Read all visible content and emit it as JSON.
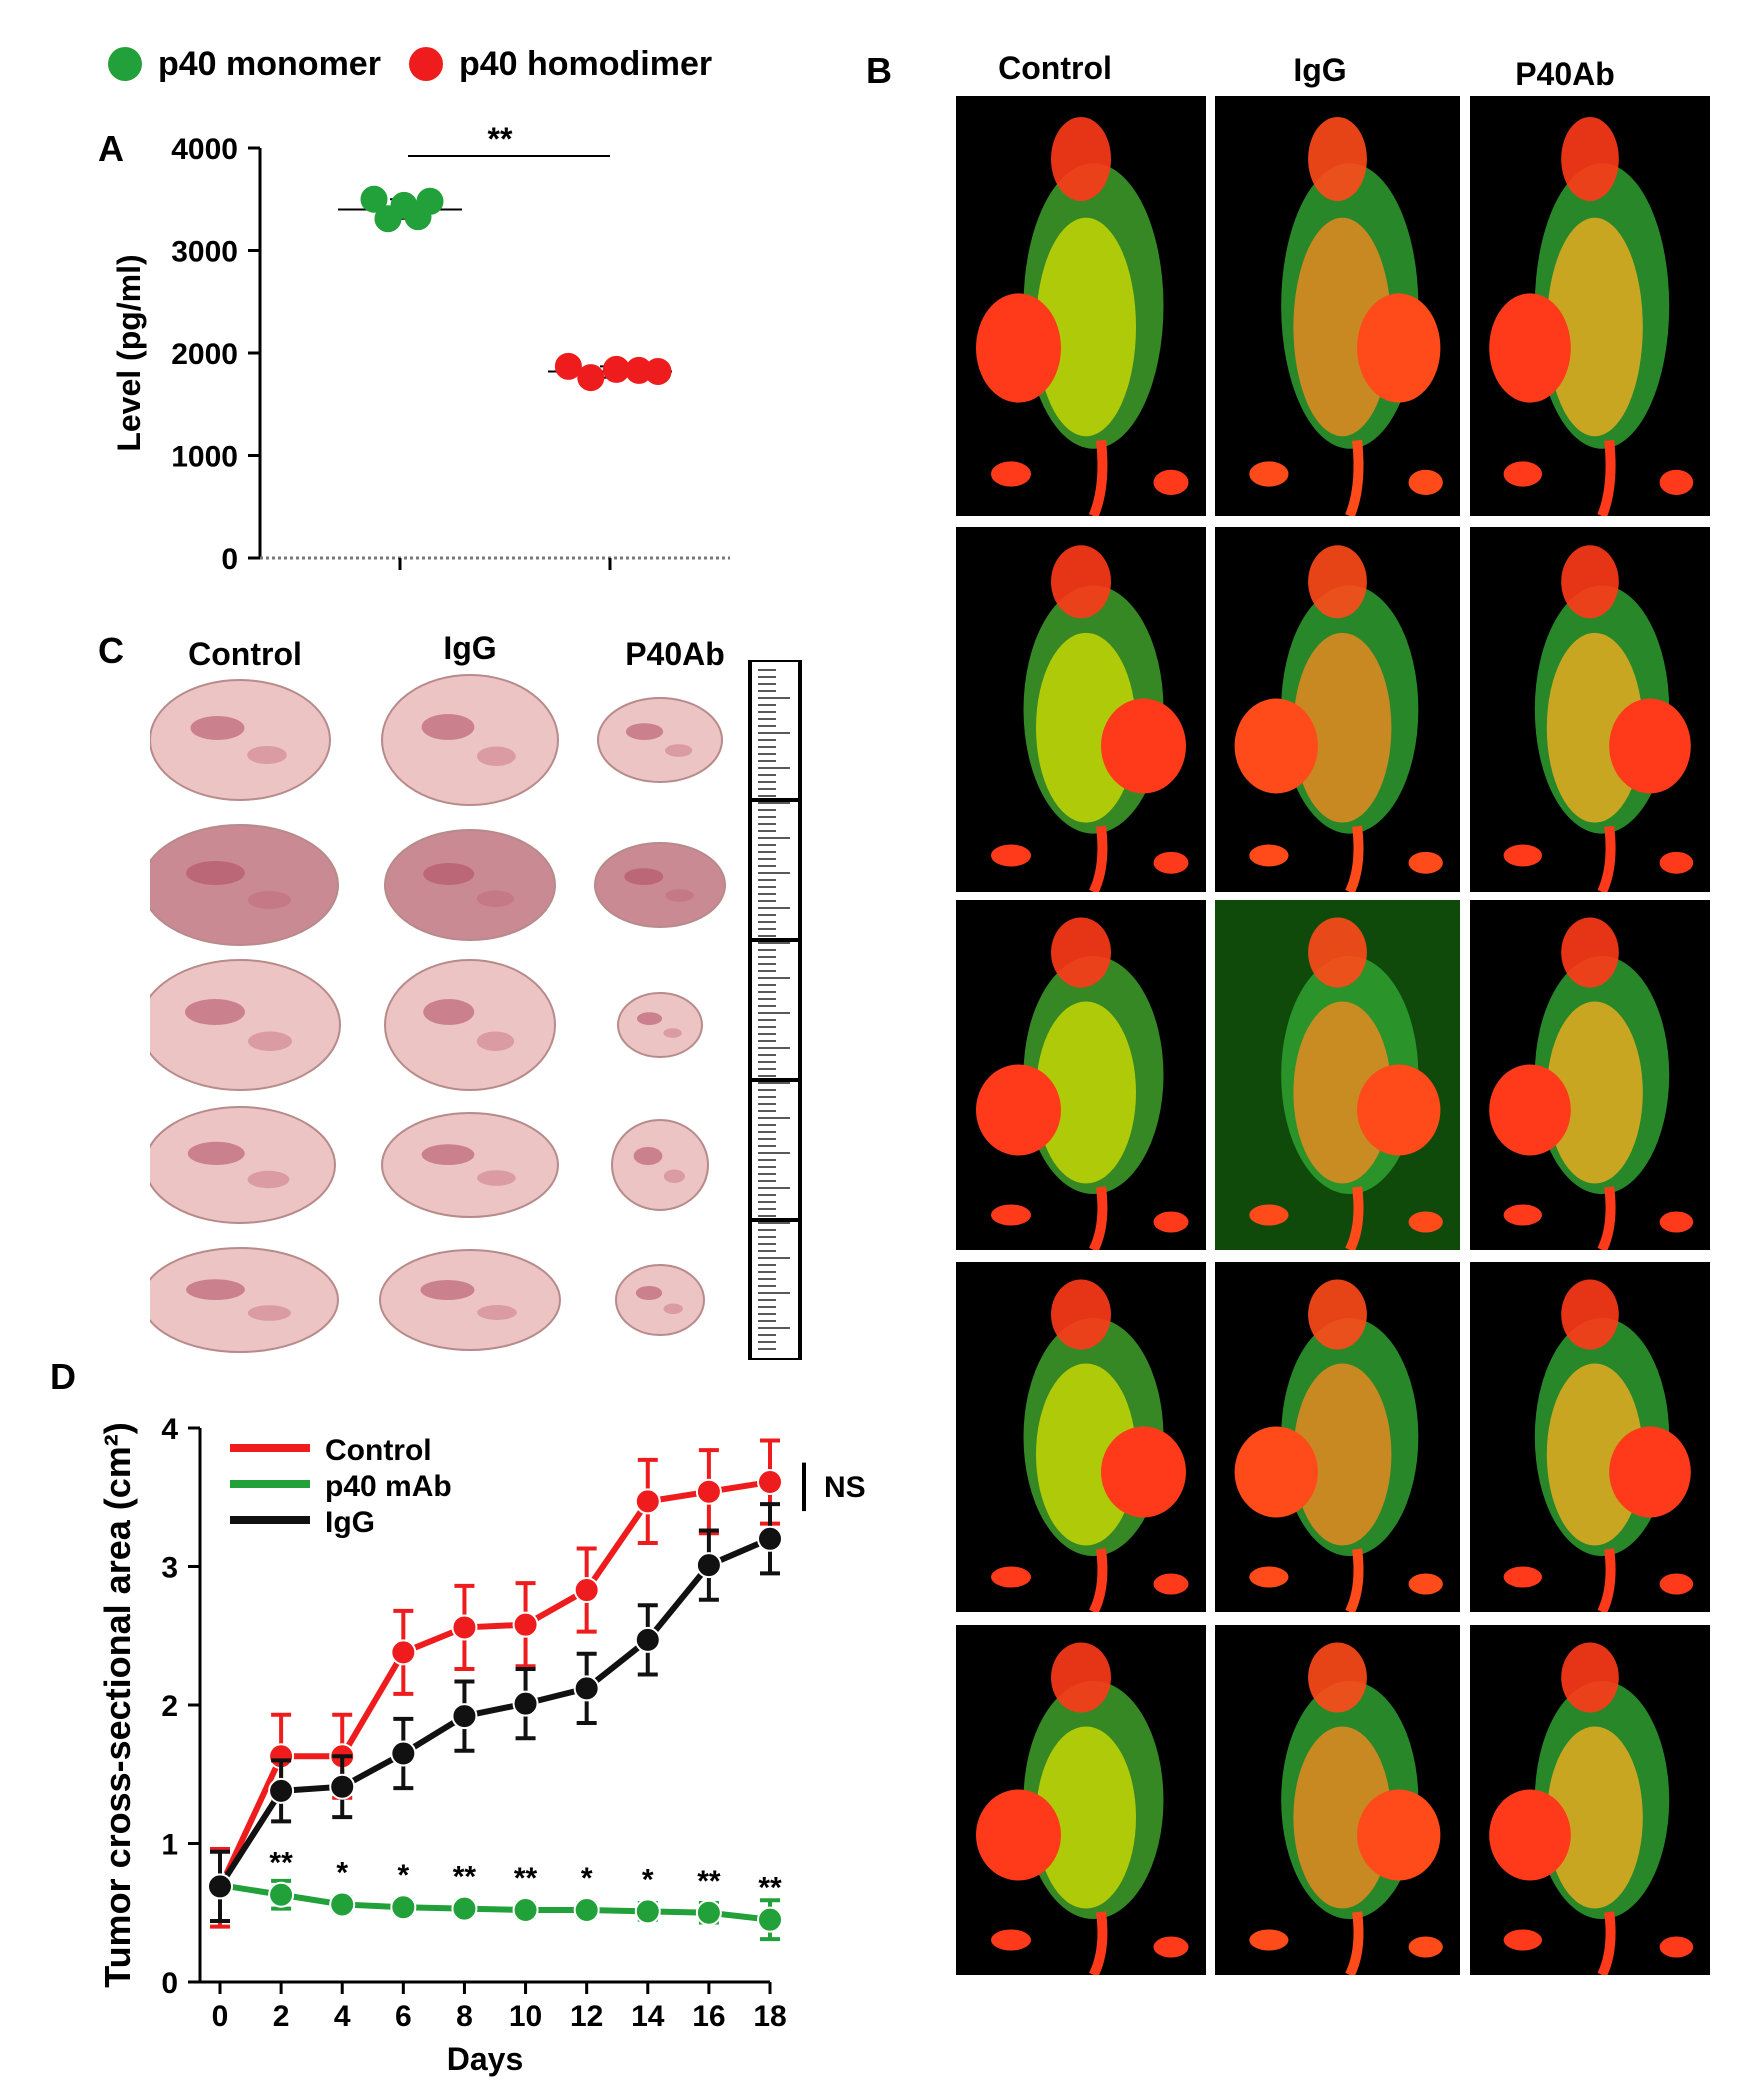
{
  "legend": {
    "items": [
      {
        "label": "p40 monomer",
        "color": "#22a03a"
      },
      {
        "label": "p40 homodimer",
        "color": "#ee1c1c"
      }
    ]
  },
  "panels": {
    "a": "A",
    "b": "B",
    "c": "C",
    "d": "D"
  },
  "panel_b": {
    "columns": [
      "Control",
      "IgG",
      "P40Ab"
    ],
    "rows": 5
  },
  "panel_c": {
    "columns": [
      "Control",
      "IgG",
      "P40Ab"
    ],
    "rows": 5
  },
  "colors": {
    "green": "#22a03a",
    "red": "#ee1c1c",
    "black": "#111111",
    "tissue": "#e8b8b8"
  },
  "chart_data": [
    {
      "type": "scatter",
      "panel": "A",
      "ylabel": "Level (pg/ml)",
      "xlabel": "",
      "ylim": [
        0,
        4000
      ],
      "yticks": [
        "0",
        "1000",
        "2000",
        "3000",
        "4000"
      ],
      "significance": "**",
      "series": [
        {
          "color": "#22a03a",
          "mean": 3400,
          "points": [
            [
              1,
              3500
            ],
            [
              1,
              3310
            ],
            [
              1,
              3440
            ],
            [
              1,
              3330
            ],
            [
              1,
              3480
            ]
          ]
        },
        {
          "color": "#ee1c1c",
          "mean": 1820,
          "points": [
            [
              2,
              1870
            ],
            [
              2,
              1760
            ],
            [
              2,
              1840
            ],
            [
              2,
              1830
            ],
            [
              2,
              1820
            ]
          ]
        }
      ]
    },
    {
      "type": "line",
      "panel": "D",
      "xlabel": "Days",
      "ylabel": "Tumor cross-sectional area (cm²)",
      "xlim": [
        0,
        18
      ],
      "ylim": [
        0,
        4
      ],
      "xticks": [
        "0",
        "2",
        "4",
        "6",
        "8",
        "10",
        "12",
        "14",
        "16",
        "18"
      ],
      "yticks": [
        "0",
        "1",
        "2",
        "3",
        "4"
      ],
      "ns_label": "NS",
      "series": [
        {
          "name": "Control",
          "color": "#ee1c1c",
          "x": [
            0,
            2,
            4,
            6,
            8,
            10,
            12,
            14,
            16,
            18
          ],
          "y": [
            0.68,
            1.63,
            1.63,
            2.38,
            2.56,
            2.58,
            2.83,
            3.47,
            3.54,
            3.61
          ],
          "err": [
            0.28,
            0.3,
            0.3,
            0.3,
            0.3,
            0.3,
            0.3,
            0.3,
            0.3,
            0.3
          ]
        },
        {
          "name": "p40 mAb",
          "color": "#22a03a",
          "x": [
            0,
            2,
            4,
            6,
            8,
            10,
            12,
            14,
            16,
            18
          ],
          "y": [
            0.7,
            0.63,
            0.56,
            0.54,
            0.53,
            0.52,
            0.52,
            0.51,
            0.5,
            0.45
          ],
          "err": [
            0.0,
            0.1,
            0.05,
            0.05,
            0.05,
            0.05,
            0.05,
            0.06,
            0.07,
            0.14
          ]
        },
        {
          "name": "IgG",
          "color": "#111111",
          "x": [
            0,
            2,
            4,
            6,
            8,
            10,
            12,
            14,
            16,
            18
          ],
          "y": [
            0.69,
            1.38,
            1.41,
            1.65,
            1.92,
            2.01,
            2.12,
            2.47,
            3.01,
            3.2
          ],
          "err": [
            0.25,
            0.22,
            0.22,
            0.25,
            0.25,
            0.25,
            0.25,
            0.25,
            0.25,
            0.25
          ]
        }
      ],
      "significance_marks": [
        "**",
        "*",
        "*",
        "**",
        "**",
        "*",
        "*",
        "**",
        "**"
      ]
    }
  ]
}
